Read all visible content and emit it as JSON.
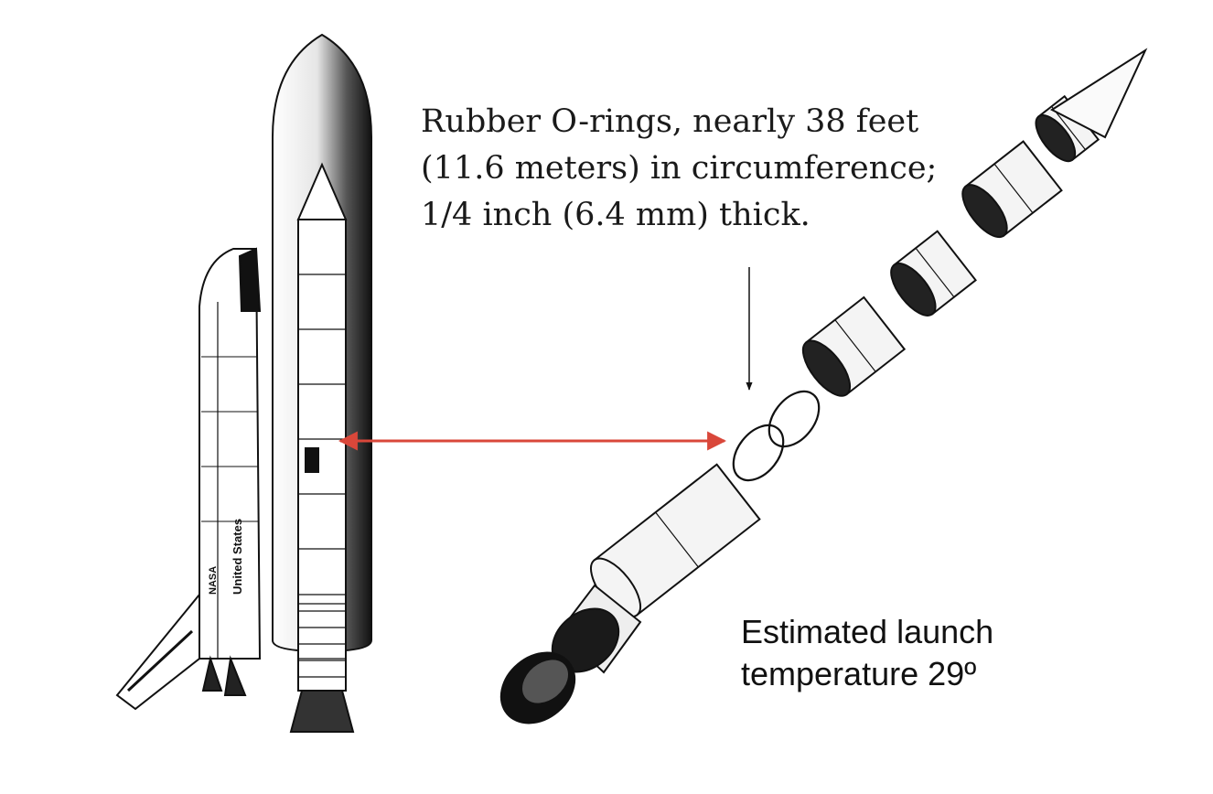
{
  "figure": {
    "orbiter_label": "United States",
    "orbiter_mark": "NASA",
    "caption_lines": [
      "Rubber O-rings, nearly 38 feet",
      "(11.6 meters) in circumference;",
      "1/4 inch (6.4 mm) thick."
    ],
    "temperature_lines": [
      "Estimated launch",
      "temperature 29º"
    ],
    "arrow_color": "#d9473a",
    "ink_color": "#111111"
  }
}
